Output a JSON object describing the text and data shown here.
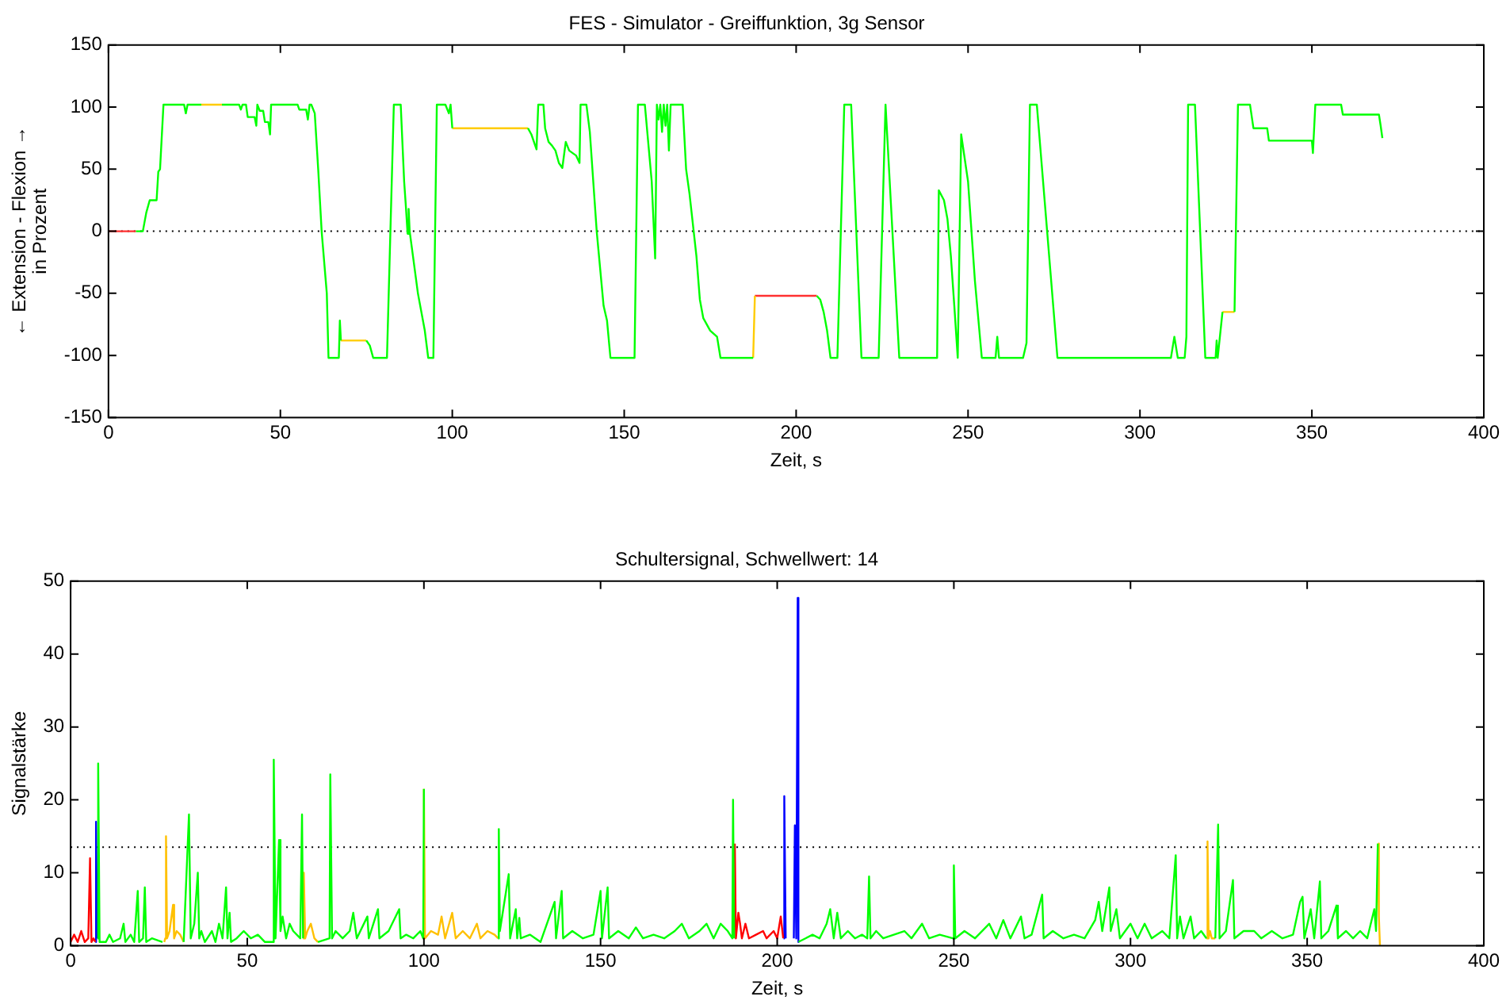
{
  "chart_data": [
    {
      "type": "line",
      "title": "FES - Simulator - Greiffunktion, 3g Sensor",
      "xlabel": "Zeit, s",
      "ylabel": "← Extension - Flexion →\nin Prozent",
      "xlim": [
        0,
        400
      ],
      "xticks": [
        0,
        50,
        100,
        150,
        200,
        250,
        300,
        350,
        400
      ],
      "ylim": [
        -150,
        150
      ],
      "yticks": [
        -150,
        -100,
        -50,
        0,
        50,
        100,
        150
      ],
      "marker": "none",
      "legend": false,
      "ref_lines": [
        {
          "axis": "y",
          "value": 0,
          "color": "#000000",
          "line_style": "dotted"
        }
      ],
      "series": [
        {
          "color": "#00ff00",
          "x": [
            8,
            10,
            11,
            12,
            14,
            14.5,
            15,
            16,
            22,
            22.5,
            23,
            27,
            30,
            33,
            38,
            38.5,
            39,
            40,
            40.5,
            42.5,
            43,
            43.3,
            44,
            45,
            45.5,
            46.5,
            47,
            47.3,
            55,
            55.5,
            57.5,
            58,
            58.5,
            59,
            60,
            61,
            62,
            63.5,
            64,
            67,
            67.3,
            67.6,
            70,
            75,
            76,
            77,
            81,
            82,
            83,
            85,
            86,
            86.5,
            87,
            87.3,
            87.6,
            90,
            92,
            93,
            94.5,
            95.5,
            98,
            99,
            99.5,
            100,
            110,
            122,
            123,
            124.5,
            125,
            126.5,
            127,
            128,
            129,
            130,
            131,
            132,
            133,
            134,
            136,
            137,
            137.3,
            139,
            140,
            142,
            144,
            145,
            146,
            153,
            154,
            156,
            158,
            159,
            159.5,
            160,
            160.5,
            161,
            161.5,
            162,
            162.5,
            163,
            163.5,
            167,
            168,
            169,
            171,
            172,
            173,
            175,
            177,
            178,
            187.5,
            195,
            206,
            207,
            208,
            209,
            210,
            212,
            214,
            216,
            219,
            224,
            226,
            230,
            241,
            241.5,
            243,
            244,
            245,
            246,
            247,
            248,
            250,
            252,
            254,
            258,
            258.5,
            259,
            266,
            267,
            268,
            270,
            273,
            276,
            309,
            310,
            311,
            313,
            313.5,
            314,
            316,
            319,
            322,
            322.3,
            322.6,
            323,
            324,
            326,
            327.5,
            328.5,
            332,
            333,
            337,
            337.5,
            350,
            350.3,
            351,
            358.5,
            359,
            369.5,
            370,
            370.5
          ],
          "values": [
            0,
            0,
            15,
            25,
            25,
            48,
            50,
            102,
            102,
            95,
            102,
            102,
            null,
            102,
            102,
            98,
            102,
            102,
            92,
            92,
            85,
            102,
            97,
            97,
            88,
            88,
            78,
            102,
            102,
            98,
            98,
            90,
            102,
            102,
            95,
            50,
            0,
            -50,
            -102,
            -102,
            -72,
            -88,
            null,
            -88,
            -92,
            -102,
            -102,
            0,
            102,
            102,
            40,
            20,
            -2,
            18,
            0,
            -50,
            -80,
            -102,
            -102,
            102,
            102,
            95,
            102,
            83,
            null,
            83,
            78,
            66,
            102,
            102,
            83,
            72,
            69,
            65,
            55,
            51,
            72,
            65,
            61,
            55,
            102,
            102,
            80,
            0,
            -60,
            -72,
            -102,
            -102,
            102,
            102,
            40,
            -22,
            102,
            90,
            102,
            80,
            102,
            85,
            102,
            65,
            102,
            102,
            50,
            30,
            -20,
            -55,
            -70,
            -80,
            -85,
            -102,
            -102,
            null,
            -52,
            -55,
            -65,
            -80,
            -102,
            -102,
            102,
            102,
            -102,
            -102,
            102,
            -102,
            -102,
            33,
            25,
            10,
            -20,
            -60,
            -102,
            78,
            40,
            -40,
            -102,
            -102,
            -85,
            -102,
            -102,
            -90,
            102,
            102,
            0,
            -102,
            -102,
            -85,
            -102,
            -102,
            -85,
            102,
            102,
            -102,
            -102,
            -88,
            -102,
            -102,
            -65,
            null,
            -65,
            102,
            102,
            83,
            83,
            73,
            73,
            63,
            102,
            102,
            94,
            94,
            85,
            75
          ]
        },
        {
          "color": "#ffcc00",
          "x": [
            27,
            33,
            50,
            67.6,
            75,
            90,
            100,
            122,
            150,
            187.5,
            188,
            250,
            324,
            327.5
          ],
          "values": [
            102,
            102,
            null,
            -88,
            -88,
            null,
            83,
            83,
            null,
            -102,
            -52,
            null,
            -65,
            -65
          ]
        },
        {
          "color": "#ff3030",
          "x": [
            0,
            8,
            100,
            188,
            206
          ],
          "values": [
            0,
            0,
            null,
            -52,
            -52
          ]
        }
      ]
    },
    {
      "type": "line",
      "title": "Schultersignal, Schwellwert: 14",
      "xlabel": "Zeit, s",
      "ylabel": "Signalstärke",
      "xlim": [
        0,
        400
      ],
      "xticks": [
        0,
        50,
        100,
        150,
        200,
        250,
        300,
        350,
        400
      ],
      "ylim": [
        0,
        50
      ],
      "yticks": [
        0,
        10,
        20,
        30,
        40,
        50
      ],
      "marker": "none",
      "legend": false,
      "ref_lines": [
        {
          "axis": "y",
          "value": 13.5,
          "color": "#000000",
          "line_style": "dotted"
        }
      ],
      "series": [
        {
          "color": "#00ff00",
          "x": [
            7.6,
            7.8,
            8.2,
            10,
            11,
            12,
            14,
            15,
            15.5,
            17,
            18,
            19,
            19.4,
            20.5,
            21,
            21.4,
            23,
            26,
            26.5,
            32,
            33.5,
            34,
            35,
            36,
            36.4,
            37,
            38,
            40,
            41,
            42,
            43,
            44,
            44.4,
            45,
            45.4,
            47,
            49,
            51,
            53,
            55,
            57.3,
            57.5,
            58,
            59,
            59.4,
            60,
            61,
            62,
            63,
            65,
            65.5,
            65.8,
            68,
            70,
            73.3,
            73.5,
            74,
            75,
            77,
            79,
            80,
            81,
            84,
            84.4,
            87,
            87.4,
            90,
            93,
            93.4,
            95,
            97,
            99,
            99.8,
            100,
            110,
            121,
            121.2,
            121.5,
            124,
            124.4,
            126,
            126.4,
            127,
            127.4,
            130,
            133,
            137,
            137.4,
            139,
            139.4,
            142,
            145,
            148,
            150,
            150.4,
            152,
            152.4,
            155,
            158,
            160,
            162,
            165,
            168,
            171,
            173,
            175,
            178,
            180,
            182,
            184,
            186,
            187.3,
            187.5,
            187.8,
            195,
            206,
            208,
            210,
            212,
            214,
            215,
            216,
            217,
            218,
            220,
            222,
            224,
            225.5,
            226,
            226.4,
            228,
            230,
            233,
            236,
            238,
            241,
            243,
            246,
            249.7,
            250,
            250.4,
            253,
            256,
            260,
            262,
            264,
            266,
            269,
            270,
            272,
            275,
            275.4,
            278,
            281,
            284,
            287,
            290,
            291,
            292,
            294,
            294.4,
            296,
            297,
            300,
            302,
            304,
            306,
            309,
            311,
            312.8,
            313.2,
            314,
            315,
            317,
            318,
            320,
            321.5,
            323,
            324,
            324.8,
            325.2,
            327,
            329,
            329.4,
            332,
            335,
            337,
            340,
            343,
            346,
            348,
            348.7,
            349.2,
            351,
            352,
            353.6,
            354,
            356,
            358.3,
            358.7,
            361,
            363,
            365,
            367,
            369,
            369.5,
            370
          ],
          "values": [
            1,
            25,
            0.5,
            0.5,
            1.5,
            0.5,
            1,
            3,
            0.5,
            1.5,
            0.5,
            7.5,
            0.5,
            1,
            8,
            0.5,
            1,
            0.5,
            null,
            0.5,
            18,
            1,
            3,
            10,
            1,
            2,
            0.5,
            2,
            0.5,
            3,
            1,
            8,
            1,
            4.5,
            0.5,
            1,
            2,
            1,
            1.5,
            0.5,
            0.5,
            25.5,
            1,
            14.5,
            2,
            4,
            1,
            3,
            2,
            1,
            18,
            1,
            null,
            0.5,
            1,
            23.5,
            1,
            2,
            1,
            2,
            4.5,
            1,
            4,
            1,
            5,
            1,
            2,
            5,
            1,
            1.5,
            1,
            2,
            1,
            21.5,
            null,
            1,
            16,
            2,
            9.8,
            1,
            5,
            1,
            3.8,
            1,
            1.5,
            0.5,
            6,
            1,
            7.5,
            1,
            2,
            1,
            1.5,
            7.5,
            1,
            8,
            1,
            2,
            1,
            2.5,
            1,
            1.5,
            1,
            2,
            3,
            1,
            2,
            3,
            1,
            3,
            2,
            1,
            20,
            1,
            null,
            0.5,
            1,
            1.5,
            1,
            3,
            5,
            1,
            4.5,
            1,
            2,
            1,
            1.5,
            1,
            9.5,
            1,
            2,
            1,
            1.5,
            2,
            1,
            3,
            1,
            1.5,
            1,
            11,
            1,
            2,
            1,
            3,
            1,
            3.5,
            1,
            4,
            1,
            1.5,
            7,
            1,
            2,
            1,
            1.5,
            1,
            3.5,
            6,
            2,
            8,
            2,
            5,
            1,
            3,
            1,
            3,
            1,
            2,
            1,
            12.4,
            1,
            4,
            1,
            4,
            1,
            2,
            1,
            null,
            1,
            16.6,
            1,
            2,
            9,
            1,
            2,
            2,
            1,
            2,
            1,
            1.5,
            6,
            6.7,
            1,
            5,
            1,
            8.8,
            1,
            2,
            5.5,
            1,
            2,
            1,
            2,
            1,
            5,
            2,
            14
          ]
        },
        {
          "color": "#ffc000",
          "x": [
            26.5,
            26.8,
            27,
            27.3,
            28,
            29,
            29.3,
            30,
            31,
            32,
            50,
            65.8,
            66,
            66.4,
            67,
            68,
            69,
            70,
            85,
            100,
            100.3,
            102,
            104,
            105,
            106,
            108,
            109,
            111,
            113,
            115,
            116,
            118,
            120,
            121,
            200,
            321.5,
            321.8,
            322.1,
            322.5,
            323,
            324,
            350,
            370,
            370.3,
            370.6
          ],
          "values": [
            0.5,
            1,
            15,
            1,
            2,
            5.6,
            1,
            2,
            1.5,
            0.5,
            null,
            1,
            10,
            1,
            2,
            3,
            1,
            0.5,
            null,
            21.5,
            1,
            2,
            1.5,
            4,
            1,
            4.5,
            1,
            2,
            1,
            3,
            1,
            2,
            1.5,
            1,
            null,
            1,
            14.3,
            1,
            2,
            1,
            1,
            null,
            14,
            4,
            0
          ]
        },
        {
          "color": "#ff0000",
          "x": [
            0,
            1,
            2,
            3,
            4,
            5,
            5.5,
            5.9,
            6.5,
            7,
            100,
            188,
            188.3,
            189,
            189.5,
            190,
            191,
            192,
            194,
            196,
            197,
            199,
            200,
            201,
            201.7
          ],
          "values": [
            0.5,
            1.5,
            0.5,
            2,
            0.5,
            1,
            12,
            0.5,
            1,
            0.5,
            null,
            14,
            1,
            4.5,
            3,
            1,
            3,
            1,
            1.5,
            2,
            1,
            2,
            1,
            4,
            1
          ]
        },
        {
          "color": "#0000ff",
          "x": [
            7,
            7.2,
            7.5,
            100,
            201.8,
            202,
            202.4,
            203,
            204.7,
            205,
            205.4,
            205.8,
            206
          ],
          "values": [
            0.5,
            17,
            1,
            null,
            1,
            20.5,
            1,
            null,
            1,
            16.5,
            1,
            47.7,
            0.5
          ]
        }
      ]
    }
  ]
}
